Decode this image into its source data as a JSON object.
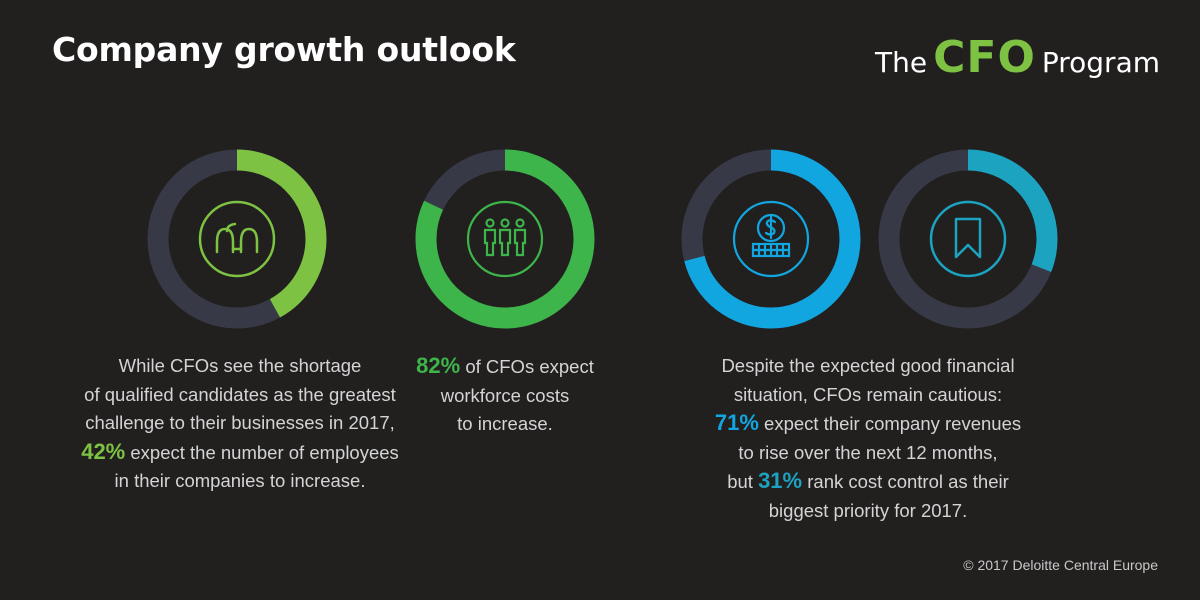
{
  "title": "Company growth outlook",
  "logo": {
    "the": "The",
    "cfo": "CFO",
    "program": "Program"
  },
  "colors": {
    "background": "#221f1f",
    "track": "#373a46",
    "light_green": "#7dc243",
    "green": "#3db54a",
    "blue": "#12a6e0",
    "teal": "#1ca3bf"
  },
  "chart_data": [
    {
      "type": "pie",
      "variant": "donut",
      "value": 42,
      "color": "#7dc243",
      "icon": "people-icon"
    },
    {
      "type": "pie",
      "variant": "donut",
      "value": 82,
      "color": "#3db54a",
      "icon": "workforce-icon"
    },
    {
      "type": "pie",
      "variant": "donut",
      "value": 71,
      "color": "#12a6e0",
      "icon": "dollar-coins-icon"
    },
    {
      "type": "pie",
      "variant": "donut",
      "value": 31,
      "color": "#1ca3bf",
      "icon": "bookmark-icon"
    }
  ],
  "captions": {
    "c1": {
      "line1": "While CFOs see the shortage",
      "line2": "of qualified candidates as the greatest",
      "line3": "challenge to their businesses in 2017,",
      "pct": "42%",
      "line4": " expect the number of employees",
      "line5": "in their companies to increase."
    },
    "c2": {
      "pct": "82%",
      "line1": " of CFOs expect",
      "line2": "workforce costs",
      "line3": "to increase."
    },
    "c3": {
      "line1": "Despite the expected good financial",
      "line2": "situation, CFOs remain cautious:",
      "pct1": "71%",
      "line3": " expect their company revenues",
      "line4": "to rise over the next 12 months,",
      "line5_pre": "but ",
      "pct2": "31%",
      "line5_post": " rank cost control as their",
      "line6": "biggest priority for 2017."
    }
  },
  "copyright": "© 2017 Deloitte Central Europe"
}
